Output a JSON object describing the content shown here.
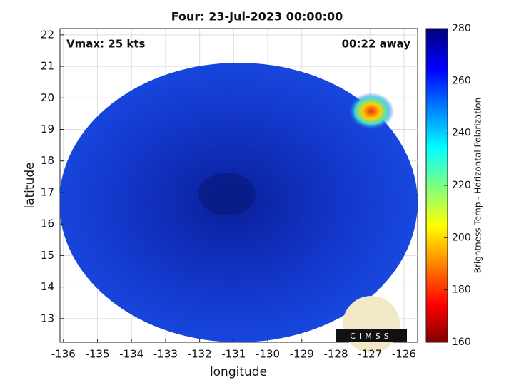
{
  "chart_data": {
    "type": "image",
    "title": "Four: 23-Jul-2023 00:00:00",
    "xlabel": "longitude",
    "ylabel": "latitude",
    "xlim": [
      -136.1,
      -125.6
    ],
    "xticks": [
      -136,
      -135,
      -134,
      -133,
      -132,
      -131,
      -130,
      -129,
      -128,
      -127,
      -126
    ],
    "ylim": [
      12.25,
      22.2
    ],
    "yticks": [
      13,
      14,
      15,
      16,
      17,
      18,
      19,
      20,
      21,
      22
    ],
    "grid": true,
    "annotations": [
      "Vmax: 25 kts",
      "00:22 away"
    ],
    "colorbar": {
      "label": "Brightness Temp - Horizontal Polarization",
      "lim": [
        160,
        280
      ],
      "ticks": [
        160,
        180,
        200,
        220,
        240,
        260,
        280
      ]
    },
    "logo": "CIMSS"
  }
}
